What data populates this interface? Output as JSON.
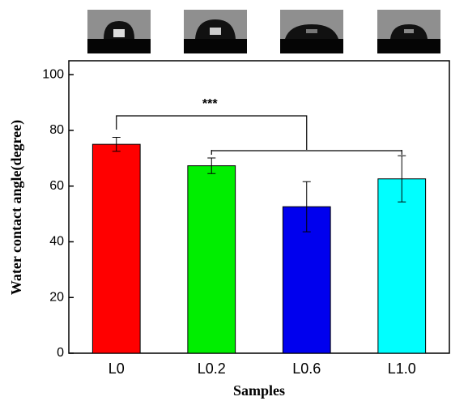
{
  "chart_data": {
    "type": "bar",
    "categories": [
      "L0",
      "L0.2",
      "L0.6",
      "L1.0"
    ],
    "values": [
      75,
      67.3,
      52.6,
      62.6
    ],
    "errors": [
      2.5,
      2.8,
      9,
      8.3
    ],
    "colors": [
      "#ff0000",
      "#00ee00",
      "#0000ee",
      "#00ffff"
    ],
    "ylim": [
      0,
      105
    ],
    "yticks": [
      0,
      20,
      40,
      60,
      80,
      100
    ],
    "x_label": "Samples",
    "y_label": "Water contact angle(degree)",
    "annotation": "***"
  }
}
